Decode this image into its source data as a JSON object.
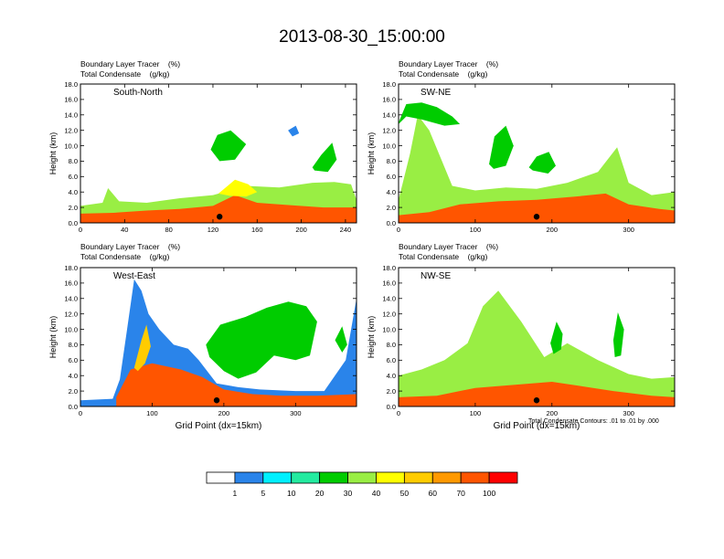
{
  "figure": {
    "title": "2013-08-30_15:00:00",
    "contour_note": "Total Condensate Contours: .01 to .01 by .000"
  },
  "chart_data": [
    {
      "type": "heatmap",
      "panel_label": "South-North",
      "header_line1": "Boundary Layer Tracer    (%)",
      "header_line2": "Total Condensate    (g/kg)",
      "ylabel": "Height (km)",
      "xlabel": "",
      "xlim": [
        0,
        250
      ],
      "ylim": [
        0,
        18
      ],
      "x_ticks": [
        0,
        40,
        80,
        120,
        160,
        200,
        240
      ],
      "y_ticks": [
        "0.0",
        "2.0",
        "4.0",
        "6.0",
        "8.0",
        "10.0",
        "12.0",
        "14.0",
        "16.0",
        "18.0"
      ],
      "marker_x": 126,
      "layers": [
        {
          "level": 30,
          "x": [
            0,
            20,
            25,
            35,
            60,
            90,
            120,
            150,
            180,
            210,
            230,
            245,
            250,
            250,
            0
          ],
          "y": [
            2.2,
            2.6,
            4.5,
            2.8,
            2.6,
            3.2,
            3.6,
            4.8,
            4.6,
            5.2,
            5.3,
            5.0,
            3.0,
            0,
            0
          ]
        },
        {
          "level": 70,
          "x": [
            0,
            30,
            60,
            90,
            120,
            140,
            160,
            190,
            220,
            250,
            250,
            0
          ],
          "y": [
            1.2,
            1.3,
            1.6,
            1.8,
            2.2,
            3.6,
            2.6,
            2.3,
            2.0,
            2.0,
            0,
            0
          ]
        },
        {
          "level": 40,
          "x": [
            125,
            140,
            152,
            160,
            150,
            135
          ],
          "y": [
            3.8,
            5.6,
            5.0,
            4.0,
            3.4,
            3.5
          ]
        },
        {
          "level": 20,
          "x": [
            210,
            218,
            228,
            232,
            224,
            212
          ],
          "y": [
            7.2,
            8.8,
            10.4,
            8.2,
            6.6,
            6.8
          ]
        },
        {
          "level": 20,
          "x": [
            118,
            124,
            136,
            150,
            140,
            126
          ],
          "y": [
            9.5,
            11.4,
            12.0,
            10.2,
            8.2,
            8.0
          ]
        },
        {
          "level": 1,
          "x": [
            188,
            195,
            198,
            192
          ],
          "y": [
            12.0,
            12.6,
            11.6,
            11.2
          ]
        }
      ]
    },
    {
      "type": "heatmap",
      "panel_label": "SW-NE",
      "header_line1": "Boundary Layer Tracer    (%)",
      "header_line2": "Total Condensate    (g/kg)",
      "ylabel": "Height (km)",
      "xlabel": "",
      "xlim": [
        0,
        360
      ],
      "ylim": [
        0,
        18
      ],
      "x_ticks": [
        0,
        100,
        200,
        300
      ],
      "y_ticks": [
        "0.0",
        "2.0",
        "4.0",
        "6.0",
        "8.0",
        "10.0",
        "12.0",
        "14.0",
        "16.0",
        "18.0"
      ],
      "marker_x": 180,
      "layers": [
        {
          "level": 30,
          "x": [
            0,
            15,
            25,
            40,
            70,
            100,
            140,
            180,
            220,
            260,
            285,
            300,
            330,
            360,
            360,
            0
          ],
          "y": [
            3.0,
            9.0,
            14.0,
            12.0,
            4.8,
            4.2,
            4.6,
            4.4,
            5.2,
            6.6,
            9.8,
            5.2,
            3.6,
            4.0,
            0,
            0
          ]
        },
        {
          "level": 20,
          "x": [
            0,
            10,
            30,
            50,
            70,
            80,
            60,
            30,
            10,
            0
          ],
          "y": [
            13.0,
            15.4,
            15.6,
            15.0,
            13.8,
            12.8,
            12.6,
            13.4,
            13.8,
            12.8
          ]
        },
        {
          "level": 70,
          "x": [
            0,
            40,
            80,
            130,
            180,
            230,
            270,
            300,
            340,
            360,
            360,
            0
          ],
          "y": [
            1.0,
            1.4,
            2.4,
            2.8,
            3.0,
            3.4,
            3.8,
            2.4,
            1.8,
            1.6,
            0,
            0
          ]
        },
        {
          "level": 20,
          "x": [
            118,
            125,
            140,
            150,
            140,
            124
          ],
          "y": [
            7.6,
            11.2,
            12.6,
            10.0,
            7.4,
            7.0
          ]
        },
        {
          "level": 20,
          "x": [
            170,
            180,
            196,
            205,
            195,
            175
          ],
          "y": [
            7.2,
            8.6,
            9.2,
            7.4,
            6.4,
            6.8
          ]
        }
      ]
    },
    {
      "type": "heatmap",
      "panel_label": "West-East",
      "header_line1": "Boundary Layer Tracer    (%)",
      "header_line2": "Total Condensate    (g/kg)",
      "ylabel": "Height (km)",
      "xlabel": "Grid Point (dx=15km)",
      "xlim": [
        0,
        385
      ],
      "ylim": [
        0,
        18
      ],
      "x_ticks": [
        0,
        100,
        200,
        300
      ],
      "y_ticks": [
        "0.0",
        "2.0",
        "4.0",
        "6.0",
        "8.0",
        "10.0",
        "12.0",
        "14.0",
        "16.0",
        "18.0"
      ],
      "marker_x": 190,
      "layers": [
        {
          "level": 1,
          "x": [
            0,
            45,
            55,
            65,
            75,
            85,
            95,
            110,
            130,
            150,
            165,
            190,
            220,
            250,
            300,
            340,
            370,
            385,
            385,
            0
          ],
          "y": [
            0.8,
            1.0,
            3.5,
            10.0,
            16.5,
            15.0,
            12.0,
            10.0,
            8.0,
            7.5,
            6.0,
            3.0,
            2.5,
            2.2,
            2.0,
            2.0,
            6.0,
            14.0,
            0,
            0
          ]
        },
        {
          "level": 20,
          "x": [
            175,
            195,
            230,
            260,
            290,
            315,
            330,
            320,
            300,
            270,
            245,
            220,
            200,
            180
          ],
          "y": [
            8.0,
            10.6,
            11.6,
            12.8,
            13.6,
            13.0,
            11.0,
            6.6,
            6.0,
            6.6,
            4.4,
            3.6,
            4.6,
            6.4
          ]
        },
        {
          "level": 70,
          "x": [
            50,
            70,
            100,
            140,
            170,
            200,
            240,
            280,
            330,
            385,
            385,
            50
          ],
          "y": [
            1.2,
            4.8,
            5.6,
            4.8,
            3.8,
            2.2,
            1.6,
            1.4,
            1.4,
            1.6,
            0,
            0
          ]
        },
        {
          "level": 50,
          "x": [
            75,
            85,
            92,
            98,
            90,
            80
          ],
          "y": [
            5.0,
            8.6,
            10.6,
            7.8,
            5.6,
            4.6
          ]
        },
        {
          "level": 20,
          "x": [
            355,
            365,
            372,
            365
          ],
          "y": [
            8.6,
            10.4,
            8.0,
            7.0
          ]
        }
      ]
    },
    {
      "type": "heatmap",
      "panel_label": "NW-SE",
      "header_line1": "Boundary Layer Tracer    (%)",
      "header_line2": "Total Condensate    (g/kg)",
      "ylabel": "Height (km)",
      "xlabel": "Grid Point (dx=15km)",
      "xlim": [
        0,
        360
      ],
      "ylim": [
        0,
        18
      ],
      "x_ticks": [
        0,
        100,
        200,
        300
      ],
      "y_ticks": [
        "0.0",
        "2.0",
        "4.0",
        "6.0",
        "8.0",
        "10.0",
        "12.0",
        "14.0",
        "16.0",
        "18.0"
      ],
      "marker_x": 180,
      "layers": [
        {
          "level": 30,
          "x": [
            0,
            30,
            60,
            90,
            110,
            130,
            160,
            190,
            220,
            260,
            300,
            330,
            360,
            360,
            0
          ],
          "y": [
            4.0,
            4.8,
            6.0,
            8.2,
            13.0,
            15.0,
            11.0,
            6.4,
            8.2,
            6.0,
            4.2,
            3.6,
            3.8,
            0,
            0
          ]
        },
        {
          "level": 70,
          "x": [
            0,
            50,
            100,
            150,
            200,
            240,
            280,
            330,
            360,
            360,
            0
          ],
          "y": [
            1.2,
            1.4,
            2.4,
            2.8,
            3.2,
            2.6,
            2.0,
            1.4,
            1.2,
            0,
            0
          ]
        },
        {
          "level": 20,
          "x": [
            198,
            206,
            214,
            212,
            202
          ],
          "y": [
            8.2,
            11.0,
            9.4,
            7.4,
            6.8
          ]
        },
        {
          "level": 20,
          "x": [
            280,
            286,
            294,
            290,
            282
          ],
          "y": [
            8.6,
            12.2,
            10.0,
            6.6,
            6.4
          ]
        }
      ]
    }
  ],
  "colorbar": {
    "levels": [
      "1",
      "5",
      "10",
      "20",
      "30",
      "40",
      "50",
      "60",
      "70",
      "100"
    ],
    "colors": [
      "#ffffff",
      "#2a84ea",
      "#00f0ff",
      "#24eba0",
      "#00cc00",
      "#99ee44",
      "#ffff00",
      "#ffcc00",
      "#ff9900",
      "#ff5500",
      "#ff0000"
    ]
  }
}
